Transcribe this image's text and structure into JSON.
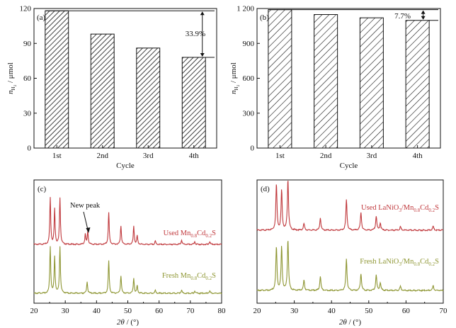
{
  "chart_data": [
    {
      "panel": "(a)",
      "type": "bar",
      "categories": [
        "1st",
        "2nd",
        "3rd",
        "4th"
      ],
      "values": [
        118,
        98,
        86,
        78
      ],
      "xlabel": "Cycle",
      "ylabel_main": "n",
      "ylabel_sub": "H",
      "ylabel_subsub": "2",
      "ylabel_unit": " / μmol",
      "ylim": [
        0,
        120
      ],
      "yticks": [
        "0",
        "30",
        "60",
        "90",
        "120"
      ],
      "annotation": "33.9%",
      "hatch": "dense-diagonal"
    },
    {
      "panel": "(b)",
      "type": "bar",
      "categories": [
        "1st",
        "2nd",
        "3rd",
        "4th"
      ],
      "values": [
        1190,
        1148,
        1120,
        1098
      ],
      "xlabel": "Cycle",
      "ylabel_main": "n",
      "ylabel_sub": "H",
      "ylabel_subsub": "2",
      "ylabel_unit": " / μmol",
      "ylim": [
        0,
        1200
      ],
      "yticks": [
        "0",
        "300",
        "600",
        "900",
        "1 200"
      ],
      "annotation": "7.7%",
      "hatch": "sparse-diagonal"
    },
    {
      "panel": "(c)",
      "type": "line",
      "xlabel_theta": "2θ",
      "xlabel_unit": " / (°)",
      "xlim": [
        20,
        80
      ],
      "xticks": [
        "20",
        "30",
        "40",
        "50",
        "60",
        "70",
        "80"
      ],
      "annotation": "New peak",
      "peaks_used": [
        [
          25.2,
          1.0
        ],
        [
          26.6,
          0.75
        ],
        [
          28.3,
          1.0
        ],
        [
          36.4,
          0.22
        ],
        [
          37.2,
          0.28
        ],
        [
          43.9,
          0.68
        ],
        [
          47.8,
          0.4
        ],
        [
          51.9,
          0.38
        ],
        [
          53.0,
          0.18
        ],
        [
          58.8,
          0.07
        ],
        [
          67.2,
          0.09
        ],
        [
          71.4,
          0.06
        ],
        [
          76.2,
          0.06
        ]
      ],
      "peaks_fresh": [
        [
          25.2,
          1.0
        ],
        [
          26.6,
          0.78
        ],
        [
          28.3,
          1.0
        ],
        [
          37.0,
          0.25
        ],
        [
          43.9,
          0.7
        ],
        [
          47.8,
          0.38
        ],
        [
          51.9,
          0.33
        ],
        [
          53.0,
          0.16
        ],
        [
          58.8,
          0.06
        ],
        [
          67.2,
          0.07
        ],
        [
          71.4,
          0.05
        ],
        [
          76.2,
          0.05
        ]
      ],
      "series": [
        {
          "name": "Used Mn0.8Cd0.2S",
          "label_main": "Used Mn",
          "s1": "0.8",
          "mid": "Cd",
          "s2": "0.2",
          "tail": "S",
          "color": "#c0393d"
        },
        {
          "name": "Fresh Mn0.8Cd0.2S",
          "label_main": "Fresh Mn",
          "s1": "0.8",
          "mid": "Cd",
          "s2": "0.2",
          "tail": "S",
          "color": "#8e9633"
        }
      ]
    },
    {
      "panel": "(d)",
      "type": "line",
      "xlabel_theta": "2θ",
      "xlabel_unit": " / (°)",
      "xlim": [
        20,
        70
      ],
      "xticks": [
        "20",
        "30",
        "40",
        "50",
        "60",
        "70"
      ],
      "peaks_used": [
        [
          25.2,
          0.9
        ],
        [
          26.6,
          0.78
        ],
        [
          28.3,
          1.0
        ],
        [
          32.6,
          0.13
        ],
        [
          37.0,
          0.24
        ],
        [
          44.0,
          0.6
        ],
        [
          47.9,
          0.35
        ],
        [
          52.0,
          0.28
        ],
        [
          53.1,
          0.14
        ],
        [
          58.5,
          0.07
        ],
        [
          67.3,
          0.08
        ]
      ],
      "peaks_fresh": [
        [
          25.2,
          0.85
        ],
        [
          26.6,
          0.85
        ],
        [
          28.3,
          1.0
        ],
        [
          32.6,
          0.2
        ],
        [
          37.0,
          0.28
        ],
        [
          44.0,
          0.62
        ],
        [
          47.9,
          0.33
        ],
        [
          52.0,
          0.3
        ],
        [
          53.1,
          0.15
        ],
        [
          58.5,
          0.08
        ],
        [
          67.3,
          0.09
        ]
      ],
      "series": [
        {
          "name": "Used LaNiO3/Mn0.8Cd0.2S",
          "label_main": "Used LaNiO",
          "s0": "3",
          "slash": "/Mn",
          "s1": "0.8",
          "mid": "Cd",
          "s2": "0.2",
          "tail": "S",
          "color": "#c0393d"
        },
        {
          "name": "Fresh LaNiO3/Mn0.8Cd0.2S",
          "label_main": "Fresh LaNiO",
          "s0": "3",
          "slash": "/Mn",
          "s1": "0.8",
          "mid": "Cd",
          "s2": "0.2",
          "tail": "S",
          "color": "#8e9633"
        }
      ]
    }
  ]
}
